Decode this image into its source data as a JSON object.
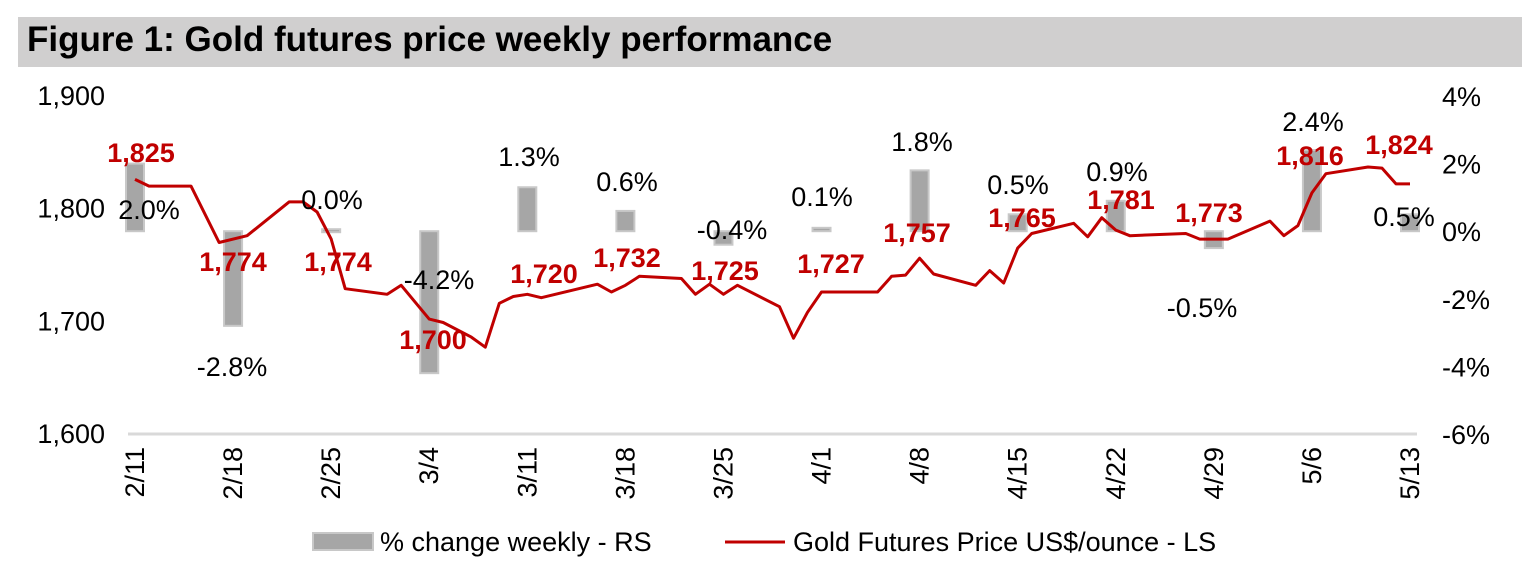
{
  "title": "Figure 1: Gold futures price weekly performance",
  "colors": {
    "title_bg": "#d0cfcf",
    "price_line": "#c00000",
    "price_label": "#c00000",
    "bar_fill": "#a6a6a6",
    "bar_border": "#c8c8c8",
    "axis_line": "#d9d9d9"
  },
  "chart_data": {
    "type": "bar",
    "title": "Figure 1: Gold futures price weekly performance",
    "categories": [
      "2/11",
      "2/18",
      "2/25",
      "3/4",
      "3/11",
      "3/18",
      "3/25",
      "4/1",
      "4/8",
      "4/15",
      "4/22",
      "4/29",
      "5/6",
      "5/13"
    ],
    "left_axis": {
      "label": "Gold Futures Price US$/ounce",
      "range": [
        1600,
        1900
      ],
      "ticks": [
        1600,
        1700,
        1800,
        1900
      ],
      "tick_labels": [
        "1,600",
        "1,700",
        "1,800",
        "1,900"
      ]
    },
    "right_axis": {
      "label": "% change weekly",
      "range": [
        -6,
        4
      ],
      "ticks": [
        -6,
        -4,
        -2,
        0,
        2,
        4
      ],
      "tick_labels": [
        "-6%",
        "-4%",
        "-2%",
        "0%",
        "2%",
        "4%"
      ]
    },
    "grid": false,
    "legend_position": "bottom",
    "series": [
      {
        "name": "% change weekly - RS",
        "type": "bar",
        "axis": "right",
        "values": [
          2.0,
          -2.8,
          0.0,
          -4.2,
          1.3,
          0.6,
          -0.4,
          0.1,
          1.8,
          0.5,
          0.9,
          -0.5,
          2.4,
          0.5
        ],
        "data_labels": [
          "2.0%",
          "-2.8%",
          "0.0%",
          "-4.2%",
          "1.3%",
          "0.6%",
          "-0.4%",
          "0.1%",
          "1.8%",
          "0.5%",
          "0.9%",
          "-0.5%",
          "2.4%",
          "0.5%"
        ]
      },
      {
        "name": "Gold Futures Price US$/ounce - LS",
        "type": "line",
        "axis": "left",
        "x_unit": "days since 2/11",
        "points": [
          [
            0,
            1826
          ],
          [
            1,
            1820
          ],
          [
            4,
            1820
          ],
          [
            6,
            1770
          ],
          [
            8,
            1776
          ],
          [
            11,
            1806
          ],
          [
            12,
            1806
          ],
          [
            13,
            1797
          ],
          [
            14,
            1773
          ],
          [
            15,
            1729
          ],
          [
            18,
            1724
          ],
          [
            19,
            1732
          ],
          [
            21,
            1702
          ],
          [
            22,
            1699
          ],
          [
            24,
            1686
          ],
          [
            25,
            1677
          ],
          [
            26,
            1716
          ],
          [
            27,
            1722
          ],
          [
            28,
            1724
          ],
          [
            29,
            1721
          ],
          [
            33,
            1733
          ],
          [
            34,
            1726
          ],
          [
            35,
            1732
          ],
          [
            36,
            1740
          ],
          [
            39,
            1738
          ],
          [
            40,
            1724
          ],
          [
            41,
            1733
          ],
          [
            42,
            1724
          ],
          [
            43,
            1732
          ],
          [
            46,
            1713
          ],
          [
            47,
            1685
          ],
          [
            48,
            1708
          ],
          [
            49,
            1726
          ],
          [
            53,
            1726
          ],
          [
            54,
            1740
          ],
          [
            55,
            1741
          ],
          [
            56,
            1756
          ],
          [
            57,
            1742
          ],
          [
            60,
            1732
          ],
          [
            61,
            1745
          ],
          [
            62,
            1734
          ],
          [
            63,
            1765
          ],
          [
            64,
            1778
          ],
          [
            67,
            1787
          ],
          [
            68,
            1775
          ],
          [
            69,
            1792
          ],
          [
            70,
            1781
          ],
          [
            71,
            1776
          ],
          [
            75,
            1778
          ],
          [
            76,
            1773
          ],
          [
            78,
            1773
          ],
          [
            81,
            1789
          ],
          [
            82,
            1776
          ],
          [
            83,
            1785
          ],
          [
            84,
            1814
          ],
          [
            85,
            1831
          ],
          [
            88,
            1837
          ],
          [
            89,
            1836
          ],
          [
            90,
            1822
          ],
          [
            91,
            1822
          ]
        ],
        "weekly_values": [
          1825,
          1774,
          1774,
          1700,
          1720,
          1732,
          1725,
          1727,
          1757,
          1765,
          1781,
          1773,
          1816,
          1824
        ],
        "data_labels": [
          "1,825",
          "1,774",
          "1,774",
          "1,700",
          "1,720",
          "1,732",
          "1,725",
          "1,727",
          "1,757",
          "1,765",
          "1,781",
          "1,773",
          "1,816",
          "1,824"
        ]
      }
    ]
  },
  "legend": {
    "bar_label": "% change weekly - RS",
    "line_label": "Gold Futures Price US$/ounce - LS"
  }
}
